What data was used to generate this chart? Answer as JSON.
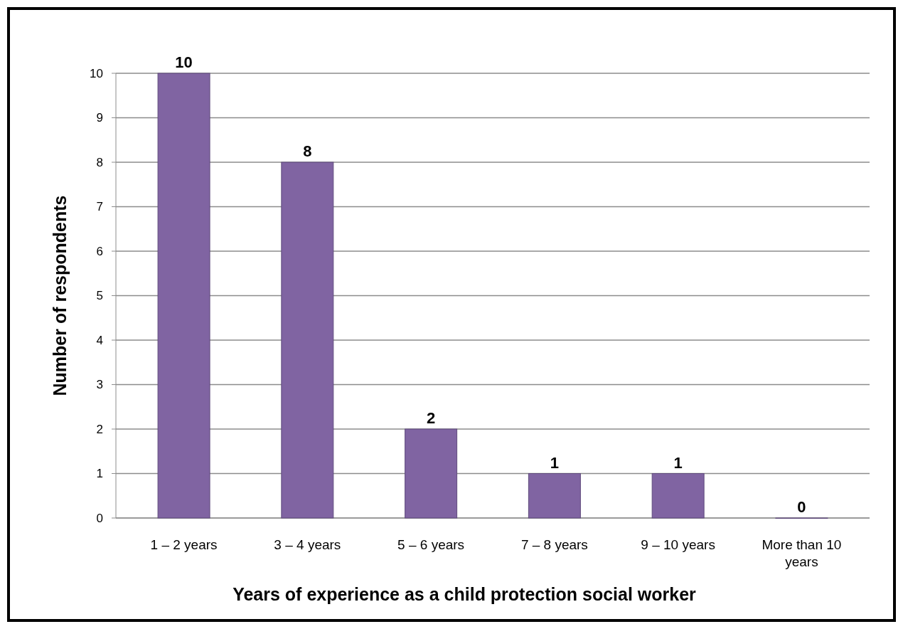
{
  "chart_data": {
    "type": "bar",
    "xlabel": "Years of experience as a child protection social worker",
    "ylabel": "Number of respondents",
    "categories": [
      "1 – 2 years",
      "3 – 4 years",
      "5 – 6 years",
      "7 – 8 years",
      "9 – 10 years",
      "More than 10 years"
    ],
    "values": [
      10,
      8,
      2,
      1,
      1,
      0
    ],
    "color": "#8064a2",
    "ylim": [
      0,
      10
    ],
    "yticks": [
      0,
      1,
      2,
      3,
      4,
      5,
      6,
      7,
      8,
      9,
      10
    ],
    "grid": "y",
    "data_labels": true
  }
}
